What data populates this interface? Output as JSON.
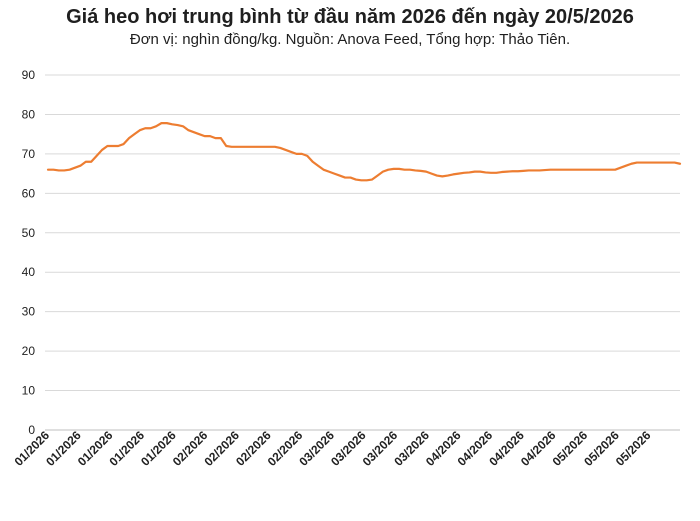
{
  "chart_data": {
    "type": "line",
    "title": "Giá heo hơi trung bình từ đầu năm 2026 đến ngày 20/5/2026",
    "subtitle": "Đơn vị: nghìn đồng/kg. Nguồn: Anova Feed, Tổng hợp: Thảo Tiên.",
    "xlabel": "",
    "ylabel": "",
    "ylim": [
      0,
      90
    ],
    "yticks": [
      0,
      10,
      20,
      30,
      40,
      50,
      60,
      70,
      80,
      90
    ],
    "xtick_labels": [
      "01/2026",
      "01/2026",
      "01/2026",
      "01/2026",
      "01/2026",
      "02/2026",
      "02/2026",
      "02/2026",
      "02/2026",
      "03/2026",
      "03/2026",
      "03/2026",
      "03/2026",
      "04/2026",
      "04/2026",
      "04/2026",
      "04/2026",
      "05/2026",
      "05/2026",
      "05/2026"
    ],
    "grid": true,
    "legend": "none",
    "line_color": "#ED7D31",
    "series": [
      {
        "values": [
          66,
          66,
          65.8,
          65.8,
          66,
          66.5,
          67,
          68,
          68,
          69.5,
          71,
          72,
          72,
          72,
          72.5,
          74,
          75,
          76,
          76.5,
          76.5,
          77,
          77.8,
          77.8,
          77.5,
          77.3,
          77,
          76,
          75.5,
          75,
          74.5,
          74.5,
          74,
          74,
          72,
          71.8,
          71.8,
          71.8,
          71.8,
          71.8,
          71.8,
          71.8,
          71.8,
          71.8,
          71.5,
          71,
          70.5,
          70,
          70,
          69.5,
          68,
          67,
          66,
          65.5,
          65,
          64.5,
          64,
          64,
          63.5,
          63.3,
          63.3,
          63.5,
          64.5,
          65.5,
          66,
          66.2,
          66.2,
          66,
          66,
          65.8,
          65.7,
          65.5,
          65,
          64.5,
          64.3,
          64.5,
          64.8,
          65,
          65.2,
          65.3,
          65.5,
          65.5,
          65.3,
          65.2,
          65.2,
          65.4,
          65.5,
          65.6,
          65.6,
          65.7,
          65.8,
          65.8,
          65.8,
          65.9,
          66,
          66,
          66,
          66,
          66,
          66,
          66,
          66,
          66,
          66,
          66,
          66,
          66,
          66.5,
          67,
          67.5,
          67.8,
          67.8,
          67.8,
          67.8,
          67.8,
          67.8,
          67.8,
          67.8,
          67.5
        ]
      }
    ]
  }
}
